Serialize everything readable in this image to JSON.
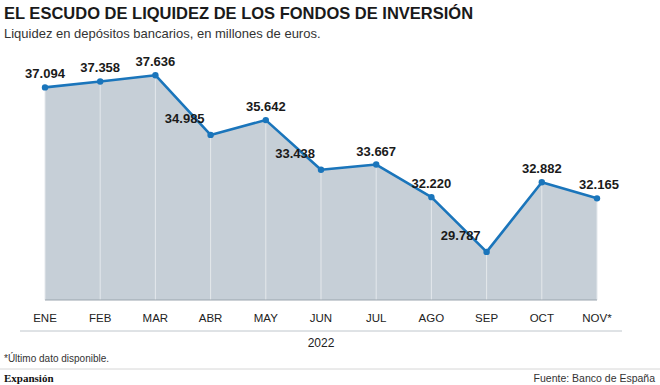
{
  "chart_data": {
    "type": "area",
    "title": "EL ESCUDO DE LIQUIDEZ DE LOS FONDOS DE INVERSIÓN",
    "subtitle": "Liquidez en depósitos bancarios, en millones de euros.",
    "x_label": "2022",
    "footnote": "*Último dato disponible.",
    "source": "Fuente: Banco de España",
    "publisher": "Expansión",
    "categories": [
      "ENE",
      "FEB",
      "MAR",
      "ABR",
      "MAY",
      "JUN",
      "JUL",
      "AGO",
      "SEP",
      "OCT",
      "NOV*"
    ],
    "values": [
      37094,
      37358,
      37636,
      34985,
      35642,
      33438,
      33667,
      32220,
      29787,
      32882,
      32165
    ],
    "value_labels": [
      "37.094",
      "37.358",
      "37.636",
      "34.985",
      "35.642",
      "33.438",
      "33.667",
      "32.220",
      "29.787",
      "32.882",
      "32.165"
    ],
    "color": "#1a75bb",
    "ylim": [
      27650,
      39200
    ],
    "grid": true,
    "data_labels": true,
    "tick_labels": "x",
    "marker": "circle"
  }
}
